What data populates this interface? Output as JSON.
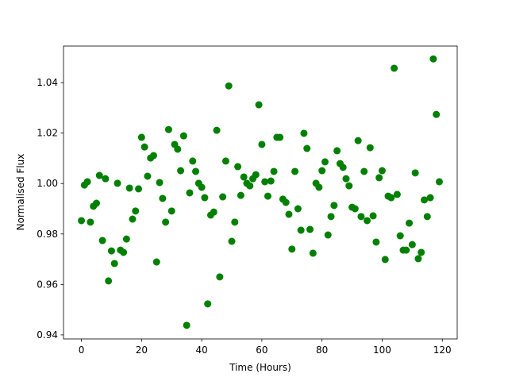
{
  "chart_data": {
    "type": "scatter",
    "x_label": "Time (Hours)",
    "y_label": "Normalised Flux",
    "color": "#008000",
    "x": [
      0,
      1,
      2,
      3,
      4,
      5,
      6,
      7,
      8,
      9,
      10,
      11,
      12,
      13,
      14,
      15,
      16,
      17,
      18,
      19,
      20,
      21,
      22,
      23,
      24,
      25,
      26,
      27,
      28,
      29,
      30,
      31,
      32,
      33,
      34,
      35,
      36,
      37,
      38,
      39,
      40,
      41,
      42,
      43,
      44,
      45,
      46,
      47,
      48,
      49,
      50,
      51,
      52,
      53,
      54,
      55,
      56,
      57,
      58,
      59,
      60,
      61,
      62,
      63,
      64,
      65,
      66,
      67,
      68,
      69,
      70,
      71,
      72,
      73,
      74,
      75,
      76,
      77,
      78,
      79,
      80,
      81,
      82,
      83,
      84,
      85,
      86,
      87,
      88,
      89,
      90,
      91,
      92,
      93,
      94,
      95,
      96,
      97,
      98,
      99,
      100,
      101,
      102,
      103,
      104,
      105,
      106,
      107,
      108,
      109,
      110,
      111,
      112,
      113,
      114,
      115,
      116,
      117,
      118,
      119
    ],
    "values": [
      0.9853,
      0.9994,
      1.0007,
      0.9847,
      0.991,
      0.9922,
      1.0032,
      0.9774,
      1.0019,
      0.9614,
      0.9733,
      0.9683,
      1.0001,
      0.9736,
      0.9727,
      0.978,
      0.9982,
      0.9859,
      0.9891,
      0.9979,
      1.0183,
      1.0145,
      1.0029,
      1.0101,
      1.0111,
      0.9689,
      1.0004,
      0.9941,
      0.9847,
      1.0214,
      0.9891,
      1.0155,
      1.0136,
      1.0051,
      1.0189,
      0.9438,
      0.9963,
      1.0089,
      1.0048,
      1.0001,
      0.9985,
      0.9944,
      0.9523,
      0.9875,
      0.9887,
      1.0211,
      0.963,
      0.9947,
      1.0089,
      1.0387,
      0.9771,
      0.9847,
      1.0067,
      0.9953,
      1.0026,
      1.0001,
      0.9991,
      1.0019,
      1.0035,
      1.0312,
      1.0155,
      1.0007,
      0.995,
      1.001,
      1.0048,
      1.0183,
      1.0183,
      0.9938,
      0.9925,
      0.9878,
      0.974,
      1.0048,
      0.99,
      0.9815,
      1.0199,
      1.0139,
      0.9818,
      0.9724,
      1.0001,
      0.9985,
      1.0051,
      1.0086,
      0.9796,
      0.9869,
      0.9913,
      1.013,
      1.0079,
      1.0064,
      1.0019,
      0.9991,
      0.9906,
      0.99,
      1.017,
      0.9869,
      1.0048,
      0.9853,
      1.0142,
      0.9872,
      0.9768,
      1.0023,
      1.0051,
      0.9699,
      0.995,
      0.9944,
      1.0457,
      0.9957,
      0.9793,
      0.9736,
      0.9736,
      0.9843,
      0.9758,
      1.0042,
      0.9702,
      0.9727,
      0.9935,
      0.9869,
      0.9944,
      1.0494,
      1.0274,
      1.0007
    ],
    "xlim": [
      -5.95,
      124.95
    ],
    "xticks": [
      0,
      20,
      40,
      60,
      80,
      100,
      120
    ],
    "ylim": [
      0.9384,
      1.0545
    ],
    "yticks": [
      0.94,
      0.96,
      0.98,
      {
        "value": 1.0,
        "label": "1.00"
      },
      1.02,
      1.04
    ]
  }
}
